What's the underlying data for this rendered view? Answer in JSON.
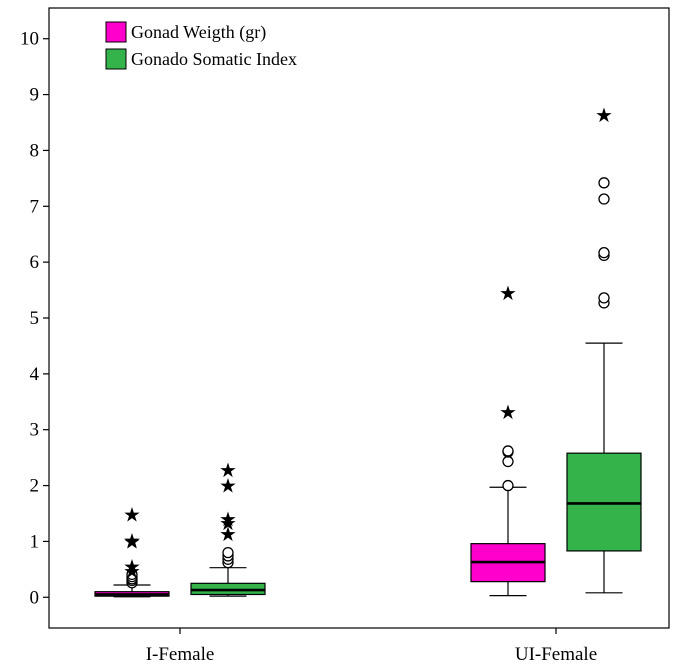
{
  "chart_data": {
    "type": "boxplot",
    "title": "",
    "xlabel": "",
    "ylabel": "",
    "ylim": [
      -0.55,
      10.55
    ],
    "yticks": [
      0,
      1,
      2,
      3,
      4,
      5,
      6,
      7,
      8,
      9,
      10
    ],
    "categories": [
      "I-Female",
      "UI-Female"
    ],
    "legend_position": "top-left",
    "grid": false,
    "series": [
      {
        "name": "Gonad Weigth (gr)",
        "color": "#ff00cc",
        "boxes": [
          {
            "category": "I-Female",
            "whisker_low": 0.01,
            "q1": 0.02,
            "median": 0.05,
            "q3": 0.1,
            "whisker_high": 0.22,
            "outliers": [
              0.26,
              0.3,
              0.33,
              0.37,
              0.41
            ],
            "extremes": [
              0.47,
              0.55,
              1.0,
              1.02,
              1.48
            ]
          },
          {
            "category": "UI-Female",
            "whisker_low": 0.03,
            "q1": 0.28,
            "median": 0.63,
            "q3": 0.96,
            "whisker_high": 1.97,
            "outliers": [
              2.0,
              2.43,
              2.6,
              2.62
            ],
            "extremes": [
              3.32,
              5.45
            ]
          }
        ]
      },
      {
        "name": "Gonado Somatic Index",
        "color": "#33b34a",
        "boxes": [
          {
            "category": "I-Female",
            "whisker_low": 0.02,
            "q1": 0.05,
            "median": 0.13,
            "q3": 0.25,
            "whisker_high": 0.53,
            "outliers": [
              0.62,
              0.68,
              0.74,
              0.8
            ],
            "extremes": [
              1.13,
              1.33,
              1.4,
              2.0,
              2.28
            ]
          },
          {
            "category": "UI-Female",
            "whisker_low": 0.08,
            "q1": 0.83,
            "median": 1.68,
            "q3": 2.58,
            "whisker_high": 4.55,
            "outliers": [
              5.27,
              5.36,
              6.12,
              6.17,
              7.13,
              7.42
            ],
            "extremes": [
              8.63
            ]
          }
        ]
      }
    ]
  }
}
